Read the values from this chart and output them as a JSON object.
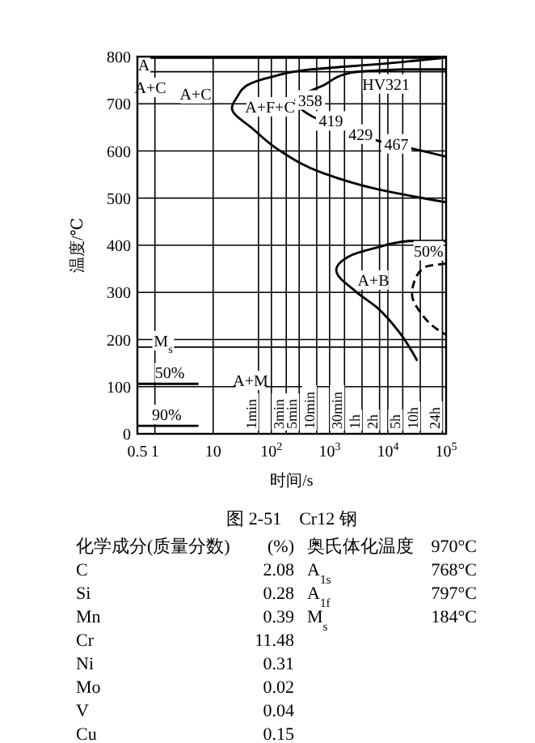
{
  "chart_data": [
    {
      "type": "line",
      "title": "图 2-51　Cr12 钢",
      "xlabel": "时间/s",
      "ylabel": "温度/℃",
      "log": "x",
      "grid": true,
      "xlim": [
        0.5,
        100000
      ],
      "xticks": [
        0.5,
        1,
        10,
        {
          "value": 100,
          "label": "10$^{2}$"
        },
        {
          "value": 1000,
          "label": "10$^{3}$"
        },
        {
          "value": 10000,
          "label": "10$^{4}$"
        },
        {
          "value": 100000,
          "label": "10$^{5}$"
        }
      ],
      "ylim": [
        0,
        800
      ],
      "yticks": [
        0,
        100,
        200,
        300,
        400,
        500,
        600,
        700,
        800
      ],
      "series": [
        {
          "color": "#000000",
          "x": [
            83000,
            6500,
            490,
            93,
            38,
            26,
            21,
            49,
            138,
            770,
            6500,
            100000
          ],
          "values": [
            797,
            784,
            773,
            756,
            739,
            715,
            691,
            646,
            601,
            553,
            519,
            491
          ]
        },
        {
          "color": "#000000",
          "x": [
            100000,
            19000,
            2300,
            780,
            260,
            490,
            1800,
            6500,
            36000,
            100000
          ],
          "values": [
            773,
            773,
            766,
            739,
            708,
            674,
            646,
            622,
            601,
            588
          ]
        },
        {
          "color": "#000000",
          "x": [
            100000,
            23000,
            6500,
            2300,
            1300,
            2800,
            6500,
            15600,
            32000
          ],
          "values": [
            409,
            409,
            395,
            378,
            347,
            302,
            268,
            216,
            155
          ]
        },
        {
          "color": "#000000",
          "line_style": "dashed",
          "x": [
            100000,
            44000,
            29000,
            26000,
            36000,
            68000,
            100000
          ],
          "values": [
            361,
            354,
            326,
            296,
            258,
            223,
            210
          ]
        },
        {
          "color": "#000000",
          "x": [
            0.5,
            5.6
          ],
          "values": [
            106,
            106
          ]
        },
        {
          "color": "#000000",
          "x": [
            0.5,
            5.6
          ],
          "values": [
            17,
            17
          ]
        }
      ],
      "ref_lines": [
        {
          "axis": "y",
          "value": 797
        },
        {
          "axis": "y",
          "value": 768
        },
        {
          "axis": "y",
          "value": 184,
          "label": "M$_{s}$"
        },
        {
          "axis": "x",
          "value": 60,
          "label": "1min"
        },
        {
          "axis": "x",
          "value": 180,
          "label": "3min"
        },
        {
          "axis": "x",
          "value": 300,
          "label": "5min"
        },
        {
          "axis": "x",
          "value": 600,
          "label": "10min"
        },
        {
          "axis": "x",
          "value": 1800,
          "label": "30min"
        },
        {
          "axis": "x",
          "value": 3600,
          "label": "1h"
        },
        {
          "axis": "x",
          "value": 7200,
          "label": "2h"
        },
        {
          "axis": "x",
          "value": 18000,
          "label": "5h"
        },
        {
          "axis": "x",
          "value": 36000,
          "label": "10h"
        },
        {
          "axis": "x",
          "value": 86400,
          "label": "24h"
        }
      ],
      "annotations": [
        "A",
        "A+C",
        "A+C",
        "A+F+C",
        "A+B",
        "A+M",
        {
          "text": "358",
          "x": 260,
          "y": 708
        },
        {
          "text": "HV321",
          "x": 9300,
          "y": 773
        },
        {
          "text": "419",
          "x": 490,
          "y": 674
        },
        {
          "text": "429",
          "x": 1800,
          "y": 646
        },
        {
          "text": "467",
          "x": 6500,
          "y": 622
        },
        {
          "text": "50%",
          "x": 44000,
          "y": 354
        },
        {
          "text": "50%",
          "x": 1.8,
          "y": 106
        },
        {
          "text": "90%",
          "x": 1.6,
          "y": 17
        }
      ]
    },
    {
      "type": "other",
      "annotations": [
        "化学成分(质量分数)",
        "(%)",
        "C",
        "2.08",
        "Si",
        "0.28",
        "Mn",
        "0.39",
        "Cr",
        "11.48",
        "Ni",
        "0.31",
        "Mo",
        "0.02",
        "V",
        "0.04",
        "Cu",
        "0.15",
        "奥氏体化温度",
        "970°C",
        "A$_{1s}$",
        "768°C",
        "A$_{1f}$",
        "797°C",
        "M$_{s}$",
        "184°C"
      ]
    }
  ]
}
